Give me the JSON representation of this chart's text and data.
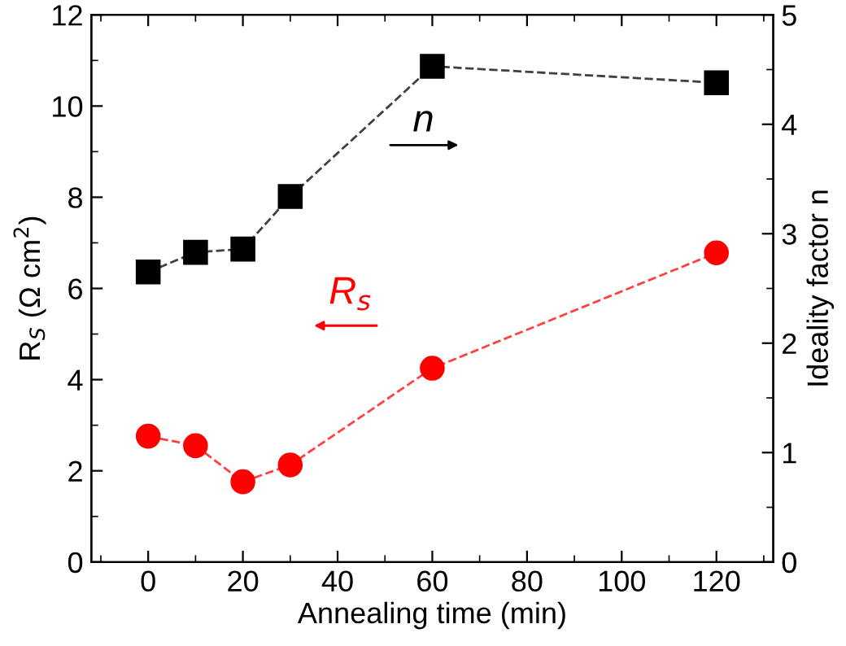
{
  "chart_data": {
    "type": "line",
    "xlabel": "Annealing time (min)",
    "ylabel": "R$_{S}$ (Ω cm$^{2}$)",
    "y2label": "Ideality factor n",
    "x": [
      0,
      10,
      20,
      30,
      60,
      120
    ],
    "series": [
      {
        "name": "n",
        "color": "#000000",
        "axis": "y2",
        "marker": "square",
        "line_style": "dashed",
        "values": [
          2.65,
          2.83,
          2.86,
          3.34,
          4.53,
          4.38
        ]
      },
      {
        "name": "R$_{s}$",
        "color": "#ff0000",
        "marker": "circle",
        "line_style": "dashed",
        "values": [
          2.76,
          2.55,
          1.76,
          2.13,
          4.25,
          6.78
        ]
      }
    ],
    "xlim": [
      -12,
      132
    ],
    "xticks": [
      0,
      20,
      40,
      60,
      80,
      100,
      120
    ],
    "ylim": [
      0,
      12
    ],
    "yticks": [
      0,
      2,
      4,
      6,
      8,
      10,
      12
    ],
    "y2lim": [
      0,
      5
    ],
    "y2ticks": [
      0,
      1,
      2,
      3,
      4,
      5
    ],
    "grid": false,
    "legend": "top"
  }
}
